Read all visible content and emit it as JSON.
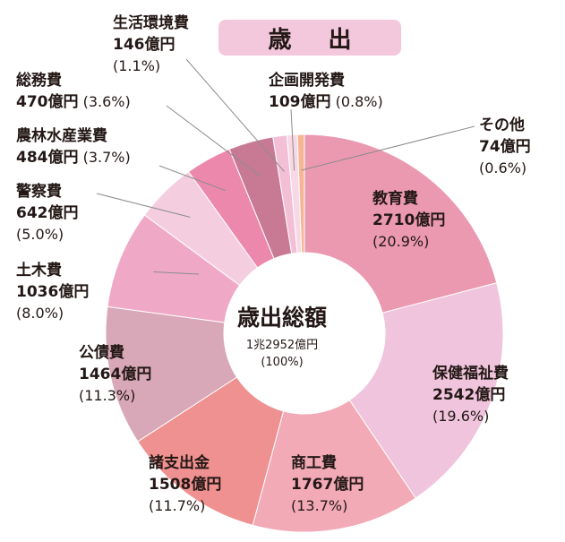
{
  "title": "歳 出",
  "center": {
    "title": "歳出総額",
    "total": "1兆2952億円",
    "percent": "(100%)"
  },
  "colors": {
    "education": "#eb99b1",
    "welfare": "#efc4dc",
    "commerce": "#f3aab7",
    "disbursement": "#ee9190",
    "debt": "#d9a8b8",
    "civil": "#f0a8c7",
    "police": "#f4cede",
    "agri": "#ec88ac",
    "general": "#c87a95",
    "living": "#f3bfd5",
    "planning": "#f8d8e5",
    "other": "#f6b695"
  },
  "labels": {
    "education": {
      "name": "教育費",
      "value": "2710億円",
      "pct": "(20.9%)"
    },
    "welfare": {
      "name": "保健福祉費",
      "value": "2542億円",
      "pct": "(19.6%)"
    },
    "commerce": {
      "name": "商工費",
      "value": "1767億円",
      "pct": "(13.7%)"
    },
    "disbursement": {
      "name": "諸支出金",
      "value": "1508億円",
      "pct": "(11.7%)"
    },
    "debt": {
      "name": "公債費",
      "value": "1464億円",
      "pct": "(11.3%)"
    },
    "civil": {
      "name": "土木費",
      "value": "1036億円",
      "pct": "(8.0%)"
    },
    "police": {
      "name": "警察費",
      "value": "642億円",
      "pct": "(5.0%)"
    },
    "agri": {
      "name": "農林水産業費",
      "value": "484億円",
      "pct": "(3.7%)"
    },
    "general": {
      "name": "総務費",
      "value": "470億円",
      "pct": "(3.6%)"
    },
    "living": {
      "name": "生活環境費",
      "value": "146億円",
      "pct": "(1.1%)"
    },
    "planning": {
      "name": "企画開発費",
      "value": "109億円",
      "pct": "(0.8%)"
    },
    "other": {
      "name": "その他",
      "value": "74億円",
      "pct": "(0.6%)"
    }
  },
  "chart_data": {
    "type": "pie",
    "title": "歳 出",
    "categories": [
      "教育費",
      "保健福祉費",
      "商工費",
      "諸支出金",
      "公債費",
      "土木費",
      "警察費",
      "農林水産業費",
      "総務費",
      "生活環境費",
      "企画開発費",
      "その他"
    ],
    "values": [
      2710,
      2542,
      1767,
      1508,
      1464,
      1036,
      642,
      484,
      470,
      146,
      109,
      74
    ],
    "percentages": [
      20.9,
      19.6,
      13.7,
      11.7,
      11.3,
      8.0,
      5.0,
      3.7,
      3.6,
      1.1,
      0.8,
      0.6
    ],
    "unit": "億円",
    "total": 12952,
    "donut": true,
    "order": "clockwise from top"
  }
}
